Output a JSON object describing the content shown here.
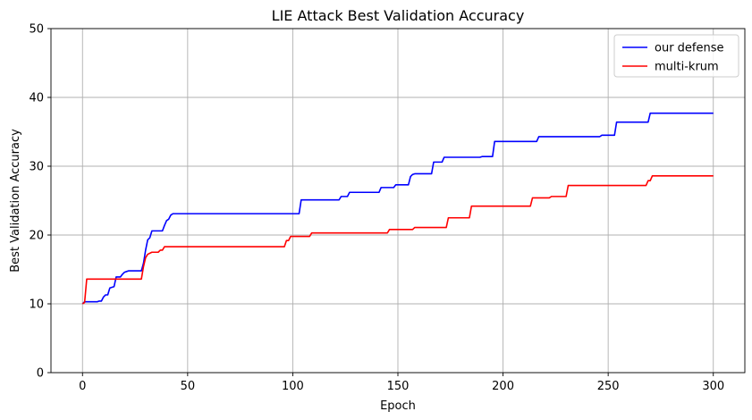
{
  "chart_data": {
    "type": "line",
    "title": "LIE Attack Best Validation Accuracy",
    "xlabel": "Epoch",
    "ylabel": "Best Validation Accuracy",
    "xlim": [
      -15,
      315
    ],
    "ylim": [
      0,
      50
    ],
    "xticks": [
      0,
      50,
      100,
      150,
      200,
      250,
      300
    ],
    "yticks": [
      0,
      10,
      20,
      30,
      40,
      50
    ],
    "grid": true,
    "legend_position": "top-right",
    "series": [
      {
        "name": "our defense",
        "color": "#0000ff",
        "points": [
          [
            0,
            10.0
          ],
          [
            1,
            10.3
          ],
          [
            7,
            10.3
          ],
          [
            8,
            10.4
          ],
          [
            9,
            10.4
          ],
          [
            10,
            11.0
          ],
          [
            11,
            11.3
          ],
          [
            12,
            11.3
          ],
          [
            13,
            12.3
          ],
          [
            15,
            12.5
          ],
          [
            16,
            13.9
          ],
          [
            18,
            13.9
          ],
          [
            19,
            14.3
          ],
          [
            20,
            14.6
          ],
          [
            21,
            14.7
          ],
          [
            22,
            14.8
          ],
          [
            28,
            14.8
          ],
          [
            29,
            15.9
          ],
          [
            30,
            17.8
          ],
          [
            31,
            19.3
          ],
          [
            32,
            19.6
          ],
          [
            33,
            20.6
          ],
          [
            38,
            20.6
          ],
          [
            39,
            21.4
          ],
          [
            40,
            22.1
          ],
          [
            41,
            22.3
          ],
          [
            42,
            22.9
          ],
          [
            43,
            23.1
          ],
          [
            103,
            23.1
          ],
          [
            104,
            25.1
          ],
          [
            122,
            25.1
          ],
          [
            123,
            25.6
          ],
          [
            126,
            25.6
          ],
          [
            127,
            26.2
          ],
          [
            141,
            26.2
          ],
          [
            142,
            26.9
          ],
          [
            148,
            26.9
          ],
          [
            149,
            27.3
          ],
          [
            155,
            27.3
          ],
          [
            156,
            28.5
          ],
          [
            157,
            28.8
          ],
          [
            158,
            28.9
          ],
          [
            166,
            28.9
          ],
          [
            167,
            30.6
          ],
          [
            171,
            30.6
          ],
          [
            172,
            31.3
          ],
          [
            189,
            31.3
          ],
          [
            190,
            31.4
          ],
          [
            195,
            31.4
          ],
          [
            196,
            33.6
          ],
          [
            216,
            33.6
          ],
          [
            217,
            34.3
          ],
          [
            246,
            34.3
          ],
          [
            247,
            34.5
          ],
          [
            253,
            34.5
          ],
          [
            254,
            36.4
          ],
          [
            269,
            36.4
          ],
          [
            270,
            37.7
          ],
          [
            300,
            37.7
          ]
        ]
      },
      {
        "name": "multi-krum",
        "color": "#ff0000",
        "points": [
          [
            0,
            10.0
          ],
          [
            1,
            10.2
          ],
          [
            2,
            13.6
          ],
          [
            28,
            13.6
          ],
          [
            29,
            15.4
          ],
          [
            30,
            16.7
          ],
          [
            31,
            17.2
          ],
          [
            33,
            17.5
          ],
          [
            36,
            17.5
          ],
          [
            37,
            17.8
          ],
          [
            38,
            17.8
          ],
          [
            39,
            18.3
          ],
          [
            96,
            18.3
          ],
          [
            97,
            19.2
          ],
          [
            98,
            19.2
          ],
          [
            99,
            19.8
          ],
          [
            108,
            19.8
          ],
          [
            109,
            20.3
          ],
          [
            145,
            20.3
          ],
          [
            146,
            20.8
          ],
          [
            157,
            20.8
          ],
          [
            158,
            21.1
          ],
          [
            173,
            21.1
          ],
          [
            174,
            22.5
          ],
          [
            184,
            22.5
          ],
          [
            185,
            24.2
          ],
          [
            213,
            24.2
          ],
          [
            214,
            25.4
          ],
          [
            222,
            25.4
          ],
          [
            223,
            25.6
          ],
          [
            230,
            25.6
          ],
          [
            231,
            27.2
          ],
          [
            268,
            27.2
          ],
          [
            269,
            27.9
          ],
          [
            270,
            27.9
          ],
          [
            271,
            28.6
          ],
          [
            300,
            28.6
          ]
        ]
      }
    ]
  }
}
